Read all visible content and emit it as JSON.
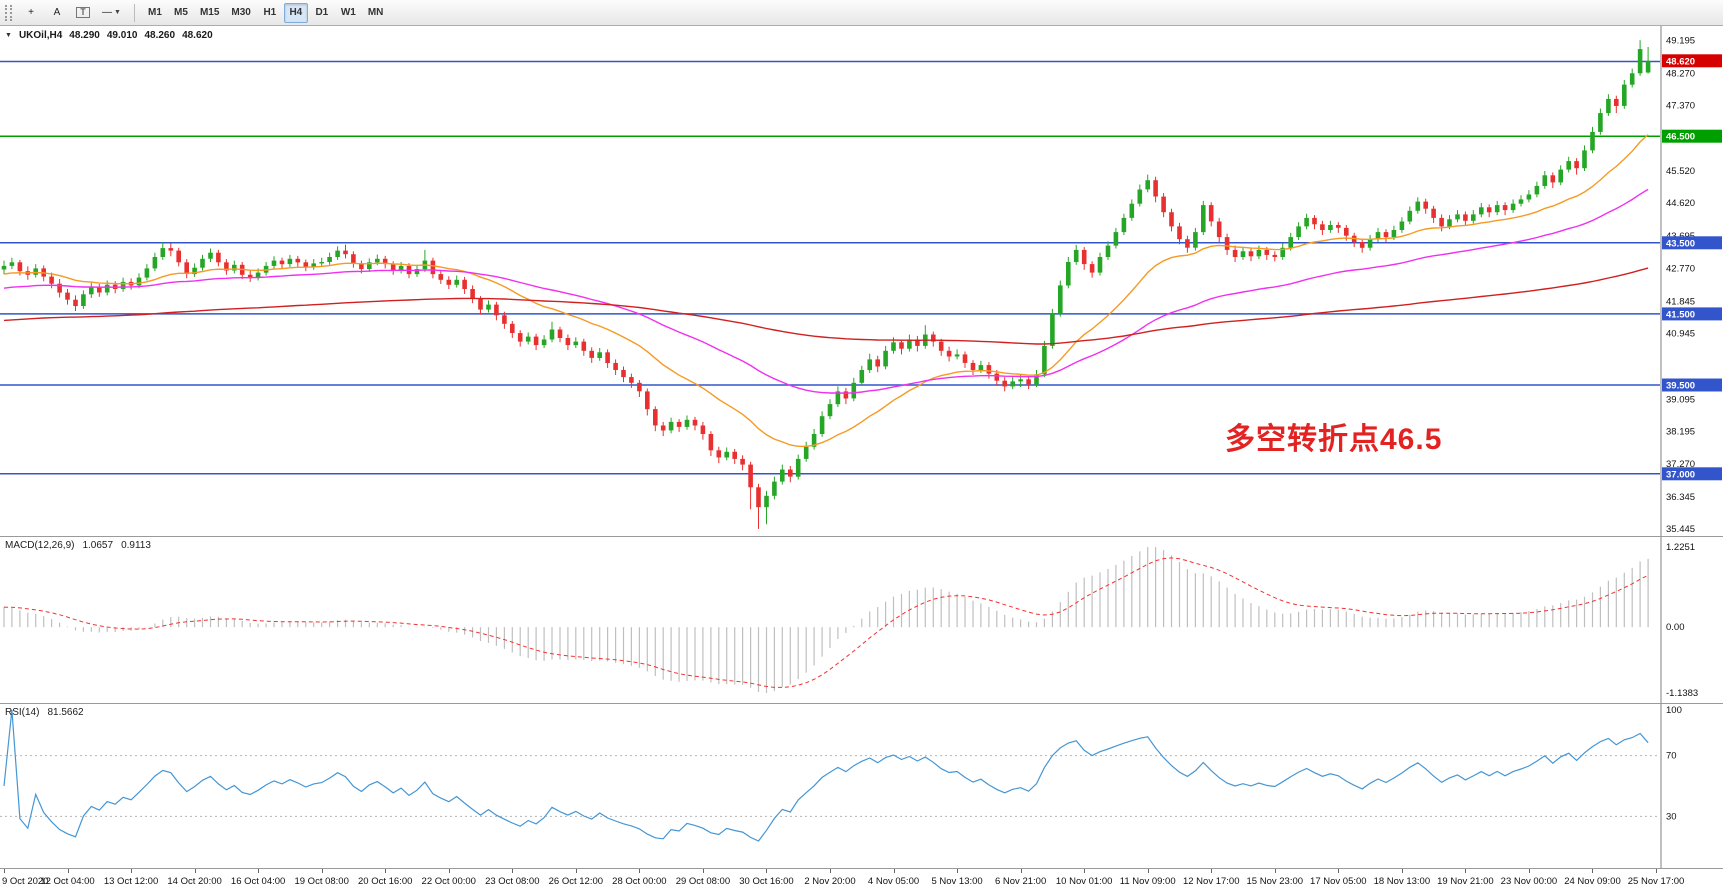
{
  "toolbar": {
    "tools": [
      {
        "name": "cursor-tool",
        "glyph": "+"
      },
      {
        "name": "text-label-tool",
        "glyph": "A"
      },
      {
        "name": "text-box-tool",
        "glyph": "T",
        "boxed": true
      },
      {
        "name": "horizontal-line-tool",
        "glyph": "—",
        "dropdown": "▼"
      }
    ],
    "timeframes": [
      "M1",
      "M5",
      "M15",
      "M30",
      "H1",
      "H4",
      "D1",
      "W1",
      "MN"
    ],
    "active_timeframe": "H4"
  },
  "chart": {
    "dropdown_glyph": "▼",
    "symbol_title": "UKOil,H4",
    "ohlc_display": {
      "open": "48.290",
      "high": "49.010",
      "low": "48.260",
      "close": "48.620"
    },
    "annotation": {
      "text": "多空转折点46.5",
      "color": "#e32222"
    },
    "price_range": {
      "max": 49.6,
      "min": 35.25
    },
    "colors": {
      "bull": "#26a626",
      "bear": "#e83030"
    },
    "axis_labels": [
      "49.195",
      "48.270",
      "47.370",
      "45.520",
      "44.620",
      "43.695",
      "42.770",
      "41.845",
      "40.945",
      "39.095",
      "38.195",
      "37.270",
      "36.345",
      "35.445"
    ],
    "price_badges": [
      {
        "value": "48.620",
        "price": 48.62,
        "color": "#d60000"
      },
      {
        "value": "46.500",
        "price": 46.5,
        "color": "#009f00"
      },
      {
        "value": "43.500",
        "price": 43.5,
        "color": "#3355cc"
      },
      {
        "value": "41.500",
        "price": 41.5,
        "color": "#3355cc"
      },
      {
        "value": "39.500",
        "price": 39.5,
        "color": "#3355cc"
      },
      {
        "value": "37.000",
        "price": 37.0,
        "color": "#3355cc"
      }
    ],
    "level_lines": [
      {
        "price": 48.6,
        "color": "#3355cc"
      },
      {
        "price": 46.5,
        "color": "#009f00"
      },
      {
        "price": 43.5,
        "color": "#3355cc"
      },
      {
        "price": 41.5,
        "color": "#3355cc"
      },
      {
        "price": 39.5,
        "color": "#3355cc"
      },
      {
        "price": 37.0,
        "color": "#3355cc"
      }
    ]
  },
  "macd": {
    "label": "MACD(12,26,9)",
    "value_main": "1.0657",
    "value_signal": "0.9113",
    "axis": [
      "1.2251",
      "0.00",
      "-1.1383"
    ],
    "params": {
      "fast": 12,
      "slow": 26,
      "signal": 9,
      "slow_seed_offset": -0.35
    },
    "hist_color": "#bfbfbf",
    "signal_color": "#f23232"
  },
  "rsi": {
    "label": "RSI(14)",
    "value": "81.5662",
    "axis": [
      "100",
      "70",
      "30"
    ],
    "period": 14,
    "levels": [
      70,
      30
    ],
    "color": "#4496d4"
  },
  "chart_data": {
    "type": "candlestick",
    "symbol": "UKOil",
    "timeframe": "H4",
    "moving_averages": [
      {
        "name": "fast-orange",
        "period": 21,
        "seed": 42.6,
        "color": "#f59a23"
      },
      {
        "name": "medium-magenta",
        "period": 55,
        "seed": 42.2,
        "color": "#f030f0"
      },
      {
        "name": "slow-red",
        "period": 200,
        "seed": 41.3,
        "color": "#d02020"
      }
    ],
    "x_labels": [
      "9 Oct 2020",
      "12 Oct 04:00",
      "13 Oct 12:00",
      "14 Oct 20:00",
      "16 Oct 04:00",
      "19 Oct 08:00",
      "20 Oct 16:00",
      "22 Oct 00:00",
      "23 Oct 08:00",
      "26 Oct 12:00",
      "28 Oct 00:00",
      "29 Oct 08:00",
      "30 Oct 16:00",
      "2 Nov 20:00",
      "4 Nov 05:00",
      "5 Nov 13:00",
      "6 Nov 21:00",
      "10 Nov 01:00",
      "11 Nov 09:00",
      "12 Nov 17:00",
      "15 Nov 23:00",
      "17 Nov 05:00",
      "18 Nov 13:00",
      "19 Nov 21:00",
      "23 Nov 00:00",
      "24 Nov 09:00",
      "25 Nov 17:00"
    ],
    "candles": [
      [
        42.75,
        43.0,
        42.62,
        42.85
      ],
      [
        42.85,
        43.08,
        42.76,
        42.95
      ],
      [
        42.95,
        43.02,
        42.58,
        42.7
      ],
      [
        42.7,
        42.84,
        42.46,
        42.6
      ],
      [
        42.6,
        42.9,
        42.52,
        42.78
      ],
      [
        42.78,
        42.86,
        42.42,
        42.55
      ],
      [
        42.55,
        42.66,
        42.22,
        42.35
      ],
      [
        42.35,
        42.48,
        41.96,
        42.1
      ],
      [
        42.1,
        42.2,
        41.76,
        41.9
      ],
      [
        41.9,
        42.02,
        41.58,
        41.72
      ],
      [
        41.72,
        42.16,
        41.64,
        42.05
      ],
      [
        42.05,
        42.38,
        41.95,
        42.25
      ],
      [
        42.25,
        42.34,
        41.98,
        42.1
      ],
      [
        42.1,
        42.44,
        42.02,
        42.32
      ],
      [
        42.32,
        42.42,
        42.08,
        42.2
      ],
      [
        42.2,
        42.52,
        42.12,
        42.4
      ],
      [
        42.4,
        42.5,
        42.18,
        42.3
      ],
      [
        42.3,
        42.64,
        42.22,
        42.52
      ],
      [
        42.52,
        42.9,
        42.44,
        42.78
      ],
      [
        42.78,
        43.22,
        42.7,
        43.1
      ],
      [
        43.1,
        43.52,
        43.02,
        43.35
      ],
      [
        43.35,
        43.48,
        43.12,
        43.28
      ],
      [
        43.28,
        43.36,
        42.84,
        42.95
      ],
      [
        42.95,
        43.04,
        42.5,
        42.62
      ],
      [
        42.62,
        42.92,
        42.54,
        42.8
      ],
      [
        42.8,
        43.16,
        42.72,
        43.05
      ],
      [
        43.05,
        43.34,
        42.96,
        43.22
      ],
      [
        43.22,
        43.3,
        42.84,
        42.95
      ],
      [
        42.95,
        43.04,
        42.6,
        42.72
      ],
      [
        42.72,
        43.0,
        42.64,
        42.88
      ],
      [
        42.88,
        42.96,
        42.48,
        42.6
      ],
      [
        42.6,
        42.72,
        42.4,
        42.52
      ],
      [
        42.52,
        42.78,
        42.44,
        42.66
      ],
      [
        42.66,
        42.96,
        42.58,
        42.85
      ],
      [
        42.85,
        43.12,
        42.77,
        43.0
      ],
      [
        43.0,
        43.08,
        42.78,
        42.9
      ],
      [
        42.9,
        43.16,
        42.82,
        43.05
      ],
      [
        43.05,
        43.13,
        42.83,
        42.95
      ],
      [
        42.95,
        43.03,
        42.7,
        42.82
      ],
      [
        42.82,
        43.04,
        42.74,
        42.92
      ],
      [
        42.92,
        43.08,
        42.84,
        42.96
      ],
      [
        42.96,
        43.22,
        42.88,
        43.1
      ],
      [
        43.1,
        43.4,
        43.02,
        43.28
      ],
      [
        43.28,
        43.45,
        43.06,
        43.18
      ],
      [
        43.18,
        43.26,
        42.8,
        42.92
      ],
      [
        42.92,
        43.0,
        42.64,
        42.76
      ],
      [
        42.76,
        43.06,
        42.68,
        42.95
      ],
      [
        42.95,
        43.17,
        42.87,
        43.05
      ],
      [
        43.05,
        43.13,
        42.78,
        42.9
      ],
      [
        42.9,
        42.98,
        42.6,
        42.72
      ],
      [
        42.72,
        42.96,
        42.64,
        42.85
      ],
      [
        42.85,
        42.93,
        42.5,
        42.62
      ],
      [
        42.62,
        42.88,
        42.54,
        42.76
      ],
      [
        42.76,
        43.3,
        42.68,
        43.0
      ],
      [
        43.0,
        43.08,
        42.5,
        42.62
      ],
      [
        42.62,
        42.72,
        42.34,
        42.46
      ],
      [
        42.46,
        42.56,
        42.2,
        42.32
      ],
      [
        42.32,
        42.58,
        42.24,
        42.46
      ],
      [
        42.46,
        42.54,
        42.06,
        42.2
      ],
      [
        42.2,
        42.3,
        41.8,
        41.92
      ],
      [
        41.92,
        42.0,
        41.48,
        41.62
      ],
      [
        41.62,
        41.88,
        41.54,
        41.76
      ],
      [
        41.76,
        41.84,
        41.32,
        41.46
      ],
      [
        41.46,
        41.56,
        41.08,
        41.22
      ],
      [
        41.22,
        41.3,
        40.82,
        40.96
      ],
      [
        40.96,
        41.04,
        40.58,
        40.72
      ],
      [
        40.72,
        40.98,
        40.64,
        40.86
      ],
      [
        40.86,
        40.94,
        40.48,
        40.62
      ],
      [
        40.62,
        40.9,
        40.54,
        40.78
      ],
      [
        40.78,
        41.28,
        40.7,
        41.06
      ],
      [
        41.06,
        41.14,
        40.7,
        40.82
      ],
      [
        40.82,
        40.92,
        40.48,
        40.62
      ],
      [
        40.62,
        40.84,
        40.54,
        40.72
      ],
      [
        40.72,
        40.8,
        40.32,
        40.46
      ],
      [
        40.46,
        40.56,
        40.12,
        40.26
      ],
      [
        40.26,
        40.54,
        40.18,
        40.42
      ],
      [
        40.42,
        40.5,
        39.98,
        40.12
      ],
      [
        40.12,
        40.22,
        39.78,
        39.92
      ],
      [
        39.92,
        40.02,
        39.58,
        39.72
      ],
      [
        39.72,
        39.82,
        39.42,
        39.56
      ],
      [
        39.56,
        39.64,
        39.16,
        39.32
      ],
      [
        39.32,
        39.4,
        38.64,
        38.82
      ],
      [
        38.82,
        38.9,
        38.2,
        38.36
      ],
      [
        38.36,
        38.46,
        38.06,
        38.22
      ],
      [
        38.22,
        38.58,
        38.14,
        38.46
      ],
      [
        38.46,
        38.54,
        38.18,
        38.32
      ],
      [
        38.32,
        38.64,
        38.24,
        38.52
      ],
      [
        38.52,
        38.6,
        38.22,
        38.36
      ],
      [
        38.36,
        38.46,
        37.96,
        38.12
      ],
      [
        38.12,
        38.2,
        37.5,
        37.66
      ],
      [
        37.66,
        37.76,
        37.3,
        37.46
      ],
      [
        37.46,
        37.74,
        37.38,
        37.62
      ],
      [
        37.62,
        37.7,
        37.28,
        37.42
      ],
      [
        37.42,
        37.52,
        37.1,
        37.26
      ],
      [
        37.26,
        37.34,
        36.0,
        36.62
      ],
      [
        36.62,
        36.72,
        35.45,
        36.06
      ],
      [
        36.06,
        36.52,
        35.58,
        36.38
      ],
      [
        36.38,
        36.92,
        36.28,
        36.78
      ],
      [
        36.78,
        37.26,
        36.7,
        37.12
      ],
      [
        37.12,
        37.22,
        36.76,
        36.92
      ],
      [
        36.92,
        37.54,
        36.84,
        37.42
      ],
      [
        37.42,
        37.9,
        37.34,
        37.76
      ],
      [
        37.76,
        38.26,
        37.68,
        38.12
      ],
      [
        38.12,
        38.76,
        38.04,
        38.62
      ],
      [
        38.62,
        39.1,
        38.54,
        38.96
      ],
      [
        38.96,
        39.46,
        38.88,
        39.32
      ],
      [
        39.32,
        39.42,
        38.96,
        39.12
      ],
      [
        39.12,
        39.7,
        39.04,
        39.56
      ],
      [
        39.56,
        40.04,
        39.48,
        39.92
      ],
      [
        39.92,
        40.38,
        39.84,
        40.22
      ],
      [
        40.22,
        40.32,
        39.86,
        40.02
      ],
      [
        40.02,
        40.6,
        39.94,
        40.46
      ],
      [
        40.46,
        40.84,
        40.38,
        40.7
      ],
      [
        40.7,
        40.78,
        40.36,
        40.52
      ],
      [
        40.52,
        40.92,
        40.44,
        40.78
      ],
      [
        40.78,
        40.88,
        40.44,
        40.6
      ],
      [
        40.6,
        41.18,
        40.52,
        40.92
      ],
      [
        40.92,
        41.0,
        40.58,
        40.72
      ],
      [
        40.72,
        40.8,
        40.32,
        40.46
      ],
      [
        40.46,
        40.58,
        40.16,
        40.3
      ],
      [
        40.3,
        40.5,
        40.22,
        40.36
      ],
      [
        40.36,
        40.44,
        39.98,
        40.12
      ],
      [
        40.12,
        40.2,
        39.78,
        39.92
      ],
      [
        39.92,
        40.18,
        39.84,
        40.06
      ],
      [
        40.06,
        40.14,
        39.68,
        39.82
      ],
      [
        39.82,
        39.92,
        39.48,
        39.62
      ],
      [
        39.62,
        39.72,
        39.32,
        39.46
      ],
      [
        39.46,
        39.74,
        39.38,
        39.6
      ],
      [
        39.6,
        39.78,
        39.44,
        39.66
      ],
      [
        39.66,
        39.74,
        39.38,
        39.52
      ],
      [
        39.52,
        39.92,
        39.44,
        39.8
      ],
      [
        39.8,
        40.74,
        39.72,
        40.6
      ],
      [
        40.6,
        41.64,
        40.52,
        41.5
      ],
      [
        41.5,
        42.44,
        41.42,
        42.3
      ],
      [
        42.3,
        43.1,
        42.22,
        42.96
      ],
      [
        42.96,
        43.44,
        42.88,
        43.3
      ],
      [
        43.3,
        43.38,
        42.74,
        42.9
      ],
      [
        42.9,
        42.98,
        42.52,
        42.66
      ],
      [
        42.66,
        43.22,
        42.58,
        43.1
      ],
      [
        43.1,
        43.54,
        43.02,
        43.42
      ],
      [
        43.42,
        43.92,
        43.34,
        43.8
      ],
      [
        43.8,
        44.32,
        43.72,
        44.2
      ],
      [
        44.2,
        44.72,
        44.12,
        44.6
      ],
      [
        44.6,
        45.14,
        44.52,
        45.0
      ],
      [
        45.0,
        45.42,
        44.92,
        45.26
      ],
      [
        45.26,
        45.36,
        44.64,
        44.8
      ],
      [
        44.8,
        44.9,
        44.22,
        44.36
      ],
      [
        44.36,
        44.46,
        43.82,
        43.96
      ],
      [
        43.96,
        44.06,
        43.46,
        43.6
      ],
      [
        43.6,
        43.7,
        43.22,
        43.36
      ],
      [
        43.36,
        43.92,
        43.28,
        43.8
      ],
      [
        43.8,
        44.68,
        43.72,
        44.56
      ],
      [
        44.56,
        44.64,
        43.96,
        44.1
      ],
      [
        44.1,
        44.2,
        43.52,
        43.66
      ],
      [
        43.66,
        43.76,
        43.16,
        43.3
      ],
      [
        43.3,
        43.42,
        42.96,
        43.1
      ],
      [
        43.1,
        43.38,
        43.02,
        43.26
      ],
      [
        43.26,
        43.34,
        42.98,
        43.12
      ],
      [
        43.12,
        43.42,
        43.04,
        43.3
      ],
      [
        43.3,
        43.38,
        43.02,
        43.16
      ],
      [
        43.16,
        43.26,
        42.98,
        43.1
      ],
      [
        43.1,
        43.48,
        43.02,
        43.36
      ],
      [
        43.36,
        43.78,
        43.28,
        43.66
      ],
      [
        43.66,
        44.08,
        43.58,
        43.96
      ],
      [
        43.96,
        44.32,
        43.88,
        44.2
      ],
      [
        44.2,
        44.28,
        43.88,
        44.02
      ],
      [
        44.02,
        44.12,
        43.72,
        43.86
      ],
      [
        43.86,
        44.12,
        43.78,
        44.0
      ],
      [
        44.0,
        44.08,
        43.78,
        43.92
      ],
      [
        43.92,
        44.0,
        43.56,
        43.7
      ],
      [
        43.7,
        43.78,
        43.38,
        43.52
      ],
      [
        43.52,
        43.62,
        43.22,
        43.36
      ],
      [
        43.36,
        43.72,
        43.28,
        43.6
      ],
      [
        43.6,
        43.92,
        43.52,
        43.8
      ],
      [
        43.8,
        43.88,
        43.52,
        43.66
      ],
      [
        43.66,
        43.98,
        43.58,
        43.86
      ],
      [
        43.86,
        44.22,
        43.78,
        44.1
      ],
      [
        44.1,
        44.52,
        44.02,
        44.4
      ],
      [
        44.4,
        44.78,
        44.32,
        44.66
      ],
      [
        44.66,
        44.74,
        44.32,
        44.46
      ],
      [
        44.46,
        44.54,
        44.06,
        44.2
      ],
      [
        44.2,
        44.3,
        43.82,
        43.96
      ],
      [
        43.96,
        44.28,
        43.88,
        44.16
      ],
      [
        44.16,
        44.42,
        44.08,
        44.3
      ],
      [
        44.3,
        44.38,
        43.98,
        44.12
      ],
      [
        44.12,
        44.42,
        44.04,
        44.3
      ],
      [
        44.3,
        44.62,
        44.22,
        44.5
      ],
      [
        44.5,
        44.58,
        44.22,
        44.36
      ],
      [
        44.36,
        44.68,
        44.28,
        44.56
      ],
      [
        44.56,
        44.64,
        44.28,
        44.42
      ],
      [
        44.42,
        44.72,
        44.34,
        44.6
      ],
      [
        44.6,
        44.84,
        44.52,
        44.72
      ],
      [
        44.72,
        44.98,
        44.64,
        44.86
      ],
      [
        44.86,
        45.22,
        44.78,
        45.1
      ],
      [
        45.1,
        45.52,
        45.02,
        45.4
      ],
      [
        45.4,
        45.48,
        45.04,
        45.2
      ],
      [
        45.2,
        45.68,
        45.12,
        45.56
      ],
      [
        45.56,
        45.92,
        45.48,
        45.8
      ],
      [
        45.8,
        45.88,
        45.42,
        45.6
      ],
      [
        45.6,
        46.24,
        45.52,
        46.1
      ],
      [
        46.1,
        46.76,
        46.02,
        46.62
      ],
      [
        46.62,
        47.28,
        46.54,
        47.15
      ],
      [
        47.15,
        47.68,
        47.07,
        47.55
      ],
      [
        47.55,
        47.64,
        47.15,
        47.35
      ],
      [
        47.35,
        48.08,
        47.27,
        47.95
      ],
      [
        47.95,
        48.4,
        47.87,
        48.27
      ],
      [
        48.27,
        49.2,
        48.2,
        48.95
      ],
      [
        48.29,
        49.01,
        48.26,
        48.62
      ]
    ]
  }
}
